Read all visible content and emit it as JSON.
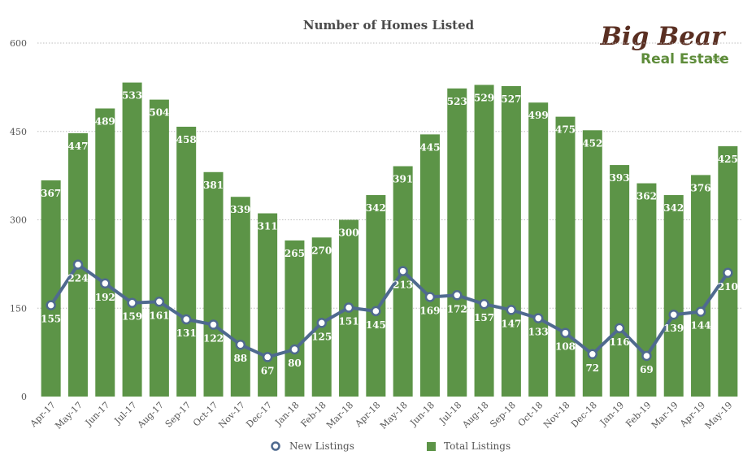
{
  "logo": {
    "line1": "Big Bear",
    "line2": "Real Estate",
    "suffix": ".com"
  },
  "chart_data": {
    "type": "bar",
    "title": "Number of Homes Listed",
    "xlabel": "",
    "ylabel": "",
    "ylim": [
      0,
      600
    ],
    "yticks": [
      0,
      150,
      300,
      450,
      600
    ],
    "grid": true,
    "legend_position": "bottom",
    "categories": [
      "Apr-17",
      "May-17",
      "Jun-17",
      "Jul-17",
      "Aug-17",
      "Sep-17",
      "Oct-17",
      "Nov-17",
      "Dec-17",
      "Jan-18",
      "Feb-18",
      "Mar-18",
      "Apr-18",
      "May-18",
      "Jun-18",
      "Jul-18",
      "Aug-18",
      "Sep-18",
      "Oct-18",
      "Nov-18",
      "Dec-18",
      "Jan-19",
      "Feb-19",
      "Mar-19",
      "Apr-19",
      "May-19"
    ],
    "series": [
      {
        "name": "New Listings",
        "type": "line",
        "color": "#4f6a8f",
        "values": [
          155,
          224,
          192,
          159,
          161,
          131,
          122,
          88,
          67,
          80,
          125,
          151,
          145,
          213,
          169,
          172,
          157,
          147,
          133,
          108,
          72,
          116,
          69,
          139,
          144,
          210
        ]
      },
      {
        "name": "Total Listings",
        "type": "bar",
        "color": "#5c9447",
        "values": [
          367,
          447,
          489,
          533,
          504,
          458,
          381,
          339,
          311,
          265,
          270,
          300,
          342,
          391,
          445,
          523,
          529,
          527,
          499,
          475,
          452,
          393,
          362,
          342,
          376,
          425
        ]
      }
    ]
  }
}
